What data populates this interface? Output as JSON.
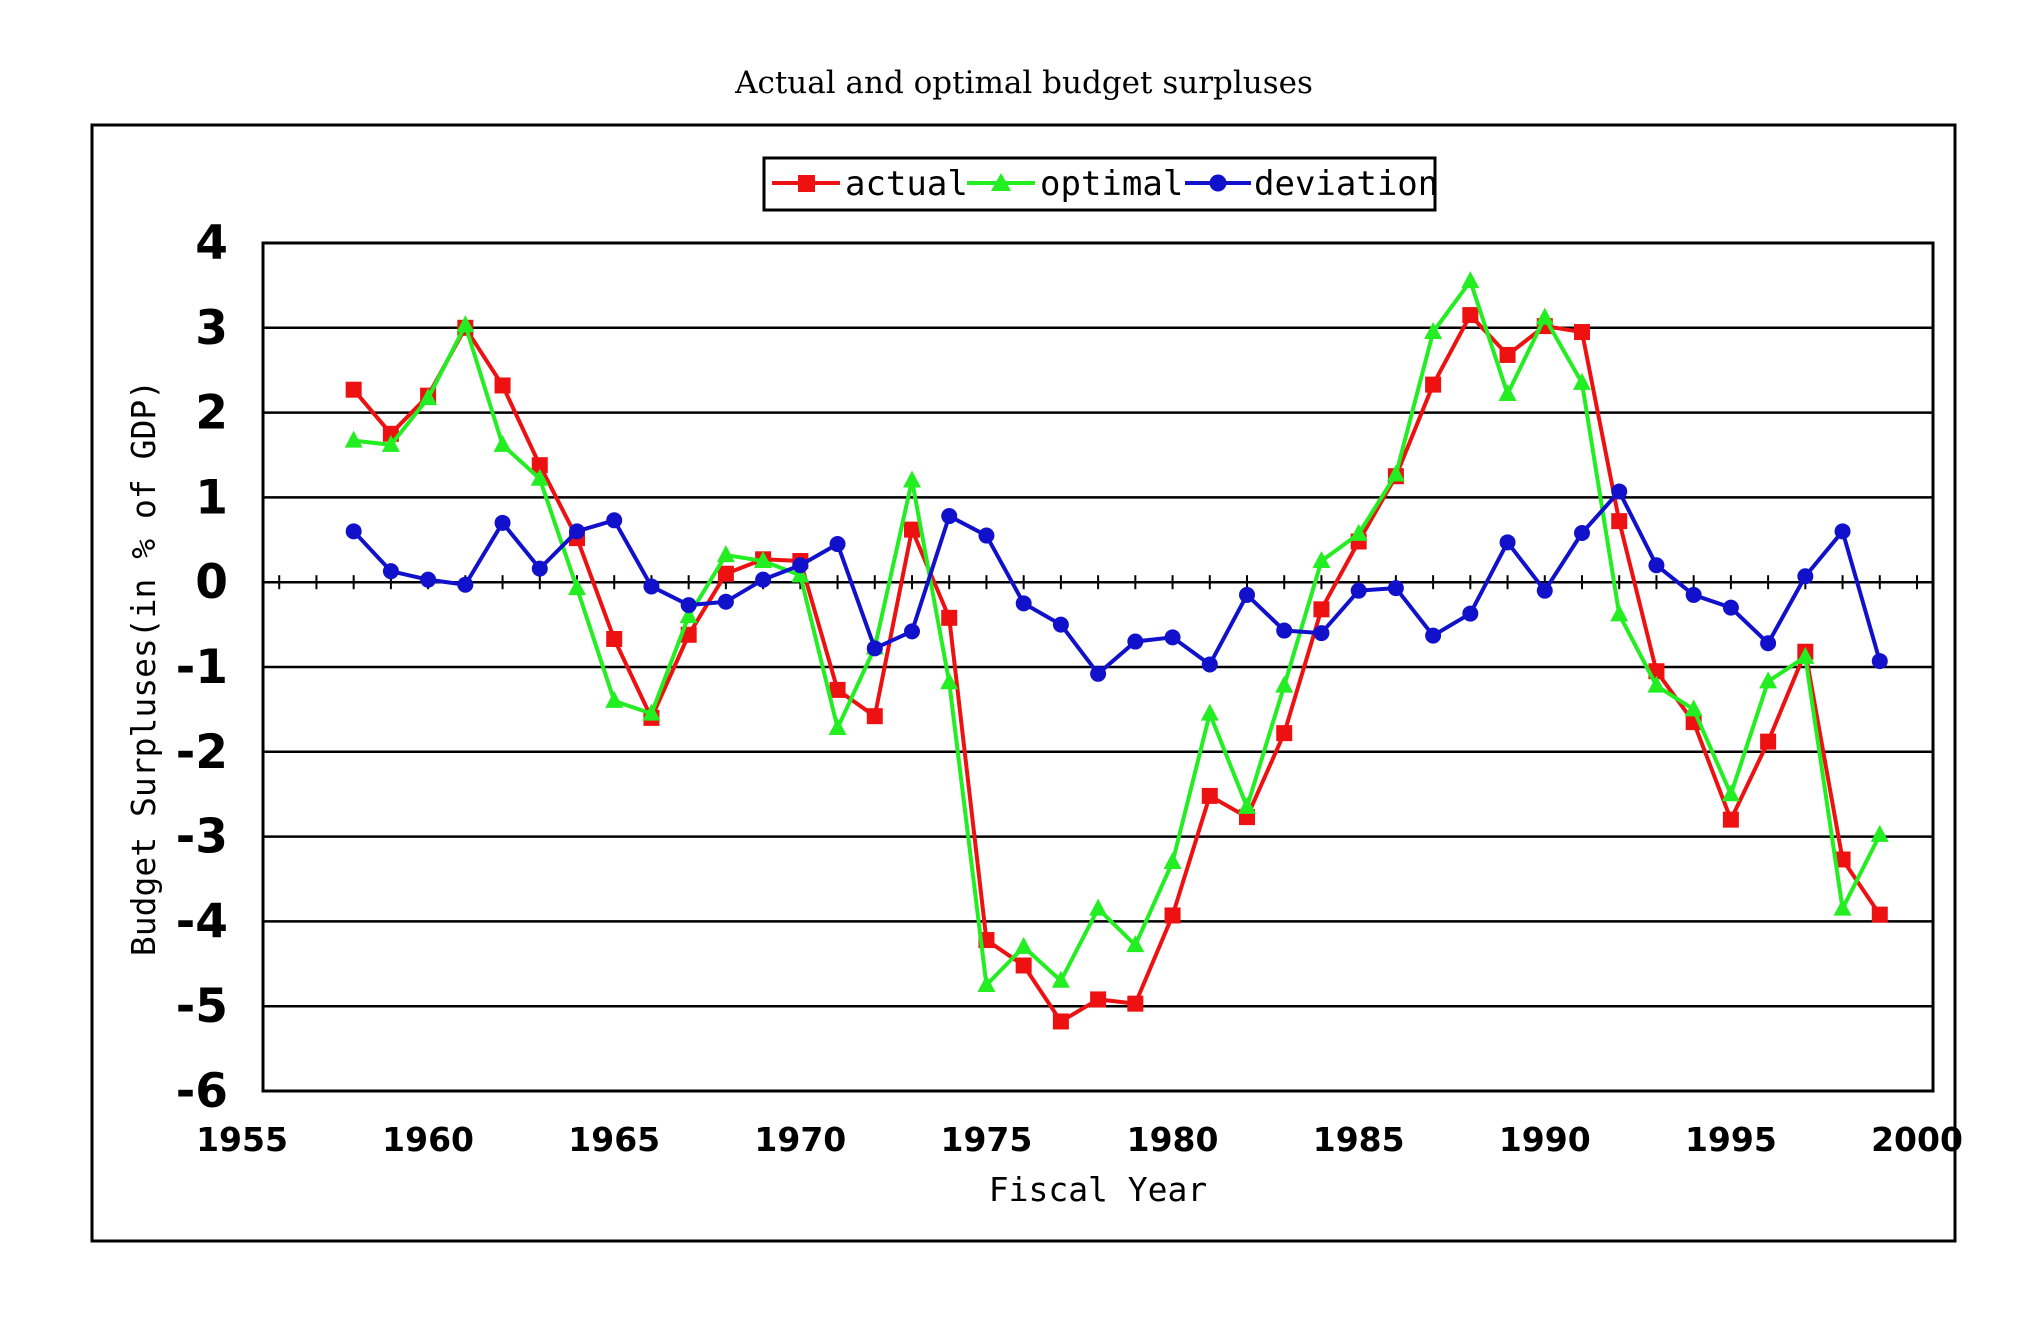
{
  "chart_data": {
    "type": "line",
    "title": "Actual and optimal budget surpluses",
    "xlabel": "Fiscal Year",
    "ylabel": "Budget Surpluses(in % of GDP)",
    "xlim": [
      1955,
      2000
    ],
    "ylim": [
      -6,
      4
    ],
    "x_ticks": [
      "1955",
      "1960",
      "1965",
      "1970",
      "1975",
      "1980",
      "1985",
      "1990",
      "1995",
      "2000"
    ],
    "y_ticks": [
      "4",
      "3",
      "2",
      "1",
      "0",
      "-1",
      "-2",
      "-3",
      "-4",
      "-5",
      "-6"
    ],
    "grid": "horizontal",
    "legend_position": "top-center",
    "x": [
      1958,
      1959,
      1960,
      1961,
      1962,
      1963,
      1964,
      1965,
      1966,
      1967,
      1968,
      1969,
      1970,
      1971,
      1972,
      1973,
      1974,
      1975,
      1976,
      1977,
      1978,
      1979,
      1980,
      1981,
      1982,
      1983,
      1984,
      1985,
      1986,
      1987,
      1988,
      1989,
      1990,
      1991,
      1992,
      1993,
      1994,
      1995,
      1996,
      1997,
      1998,
      1999
    ],
    "series": [
      {
        "name": "actual",
        "color": "#ee1111",
        "marker": "square",
        "values": [
          2.27,
          1.75,
          2.2,
          3.0,
          2.32,
          1.38,
          0.52,
          -0.67,
          -1.6,
          -0.62,
          0.1,
          0.27,
          0.25,
          -1.27,
          -1.58,
          0.62,
          -0.42,
          -4.22,
          -4.52,
          -5.18,
          -4.92,
          -4.97,
          -3.93,
          -2.52,
          -2.77,
          -1.78,
          -0.32,
          0.48,
          1.25,
          2.33,
          3.15,
          2.68,
          3.02,
          2.95,
          0.72,
          -1.05,
          -1.65,
          -2.8,
          -1.88,
          -0.82,
          -3.27,
          -3.92
        ]
      },
      {
        "name": "optimal",
        "color": "#22ee22",
        "marker": "triangle",
        "values": [
          1.67,
          1.62,
          2.17,
          3.03,
          1.62,
          1.22,
          -0.07,
          -1.4,
          -1.55,
          -0.4,
          0.32,
          0.25,
          0.08,
          -1.72,
          -0.77,
          1.2,
          -1.18,
          -4.75,
          -4.3,
          -4.7,
          -3.85,
          -4.28,
          -3.3,
          -1.55,
          -2.65,
          -1.22,
          0.25,
          0.57,
          1.27,
          2.95,
          3.55,
          2.22,
          3.12,
          2.35,
          -0.38,
          -1.22,
          -1.5,
          -2.5,
          -1.17,
          -0.88,
          -3.85,
          -2.98
        ]
      },
      {
        "name": "deviation",
        "color": "#1111cc",
        "marker": "circle",
        "values": [
          0.6,
          0.13,
          0.03,
          -0.03,
          0.7,
          0.16,
          0.6,
          0.73,
          -0.05,
          -0.27,
          -0.23,
          0.03,
          0.2,
          0.45,
          -0.78,
          -0.58,
          0.78,
          0.55,
          -0.25,
          -0.5,
          -1.08,
          -0.7,
          -0.65,
          -0.97,
          -0.15,
          -0.57,
          -0.6,
          -0.1,
          -0.07,
          -0.63,
          -0.37,
          0.47,
          -0.1,
          0.58,
          1.07,
          0.2,
          -0.15,
          -0.3,
          -0.72,
          0.07,
          0.6,
          -0.93
        ]
      }
    ]
  }
}
